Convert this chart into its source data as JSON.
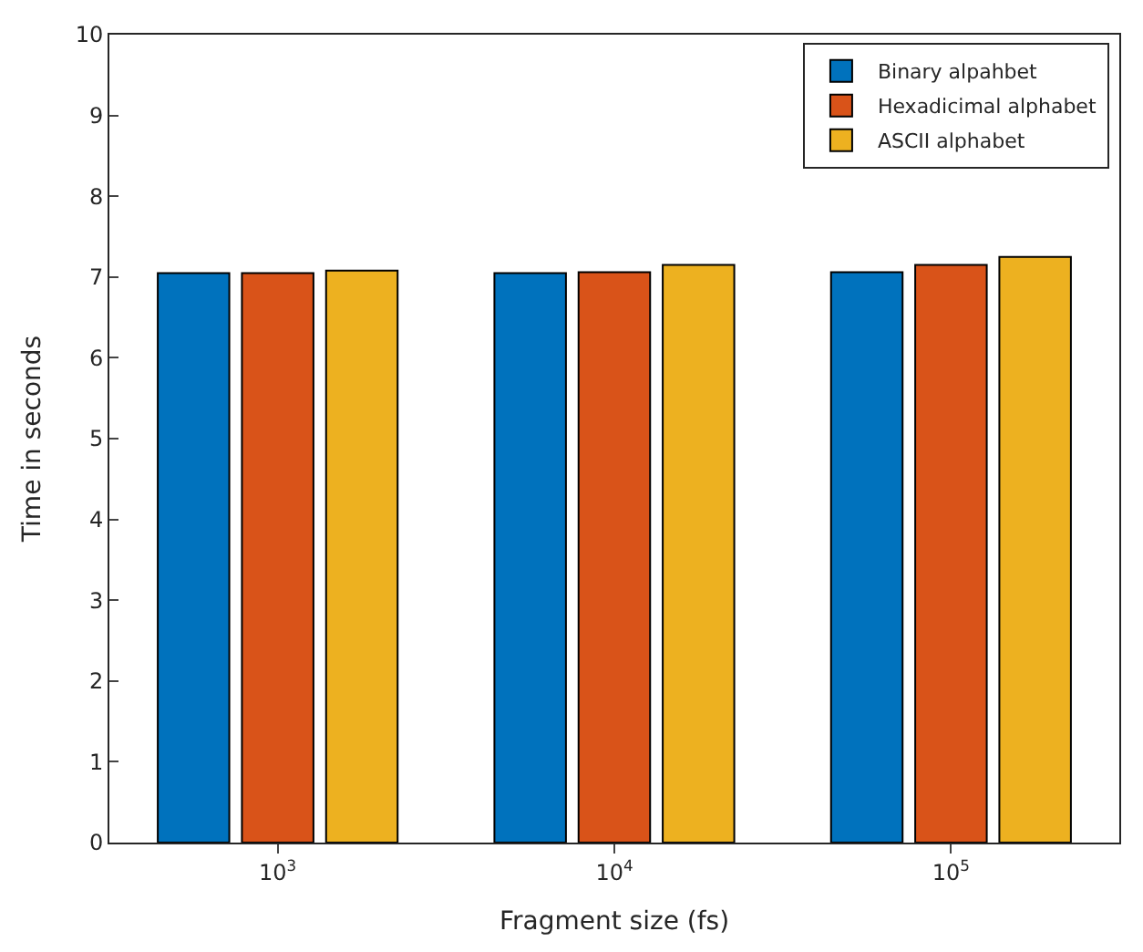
{
  "chart_data": {
    "type": "bar",
    "xlabel": "Fragment size (fs)",
    "ylabel": "Time in seconds",
    "categories": [
      "10$^{3}$",
      "10$^{4}$",
      "10$^{5}$"
    ],
    "series": [
      {
        "name": "Binary alpahbet",
        "color": "#0072bd",
        "values": [
          7.05,
          7.05,
          7.06
        ]
      },
      {
        "name": "Hexadicimal alphabet",
        "color": "#d95319",
        "values": [
          7.05,
          7.06,
          7.15
        ]
      },
      {
        "name": "ASCII alphabet",
        "color": "#edb120",
        "values": [
          7.08,
          7.15,
          7.25
        ]
      }
    ],
    "ylim": [
      0,
      10
    ],
    "yticks": [
      0,
      1,
      2,
      3,
      4,
      5,
      6,
      7,
      8,
      9,
      10
    ],
    "legend": "top right"
  }
}
